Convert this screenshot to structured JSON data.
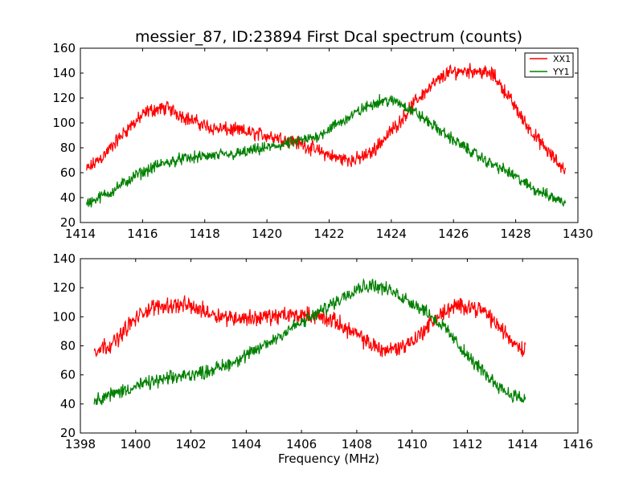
{
  "figure": {
    "title": "messier_87, ID:23894 First Dcal spectrum (counts)"
  },
  "chart_data": [
    {
      "type": "line",
      "xlim": [
        1414,
        1430
      ],
      "ylim": [
        20,
        160
      ],
      "x_ticks": [
        "1414",
        "1416",
        "1418",
        "1420",
        "1422",
        "1424",
        "1426",
        "1428",
        "1430"
      ],
      "y_ticks": [
        "20",
        "40",
        "60",
        "80",
        "100",
        "120",
        "140",
        "160"
      ],
      "legend": {
        "location": "top-right",
        "entries": [
          "XX1",
          "YY1"
        ]
      },
      "grid": false,
      "series": [
        {
          "name": "XX1",
          "color": "#ff0000",
          "noise": 6,
          "x": [
            1414.2,
            1414.8,
            1415.5,
            1416.2,
            1416.8,
            1417.5,
            1418.2,
            1419.0,
            1420.0,
            1420.8,
            1421.5,
            1422.2,
            1422.8,
            1423.3,
            1423.8,
            1424.3,
            1424.8,
            1425.3,
            1425.8,
            1426.3,
            1426.8,
            1427.3,
            1427.8,
            1428.3,
            1428.8,
            1429.2,
            1429.6
          ],
          "y": [
            62,
            75,
            95,
            110,
            112,
            103,
            96,
            94,
            90,
            86,
            79,
            72,
            70,
            75,
            88,
            102,
            118,
            130,
            140,
            142,
            142,
            138,
            120,
            100,
            84,
            72,
            62
          ]
        },
        {
          "name": "YY1",
          "color": "#008000",
          "noise": 5,
          "x": [
            1414.2,
            1415.0,
            1415.8,
            1416.5,
            1417.2,
            1418.0,
            1419.0,
            1420.0,
            1420.8,
            1421.5,
            1422.2,
            1423.0,
            1423.6,
            1424.2,
            1424.8,
            1425.5,
            1426.2,
            1427.0,
            1427.8,
            1428.5,
            1429.2,
            1429.6
          ],
          "y": [
            35,
            45,
            58,
            66,
            71,
            73,
            75,
            80,
            84,
            88,
            98,
            110,
            118,
            117,
            108,
            95,
            83,
            70,
            60,
            48,
            40,
            36
          ]
        }
      ]
    },
    {
      "type": "line",
      "xlim": [
        1398,
        1416
      ],
      "ylim": [
        20,
        140
      ],
      "xlabel": "Frequency (MHz)",
      "x_ticks": [
        "1398",
        "1400",
        "1402",
        "1404",
        "1406",
        "1408",
        "1410",
        "1412",
        "1414",
        "1416"
      ],
      "y_ticks": [
        "20",
        "40",
        "60",
        "80",
        "100",
        "120",
        "140"
      ],
      "grid": false,
      "series": [
        {
          "name": "XX1",
          "color": "#ff0000",
          "noise": 6,
          "x": [
            1398.5,
            1399.2,
            1399.8,
            1400.4,
            1401.0,
            1401.8,
            1402.5,
            1403.2,
            1404.0,
            1404.8,
            1405.6,
            1406.4,
            1407.2,
            1407.8,
            1408.4,
            1409.0,
            1409.6,
            1410.2,
            1410.8,
            1411.4,
            1412.0,
            1412.6,
            1413.2,
            1413.7,
            1414.1
          ],
          "y": [
            77,
            82,
            95,
            105,
            108,
            108,
            104,
            100,
            99,
            100,
            101,
            101,
            97,
            90,
            82,
            77,
            79,
            86,
            98,
            106,
            108,
            104,
            92,
            82,
            77
          ]
        },
        {
          "name": "YY1",
          "color": "#008000",
          "noise": 5,
          "x": [
            1398.5,
            1399.2,
            1400.0,
            1400.8,
            1401.6,
            1402.5,
            1403.3,
            1404.0,
            1404.8,
            1405.6,
            1406.4,
            1407.2,
            1408.0,
            1408.6,
            1409.2,
            1409.8,
            1410.5,
            1411.2,
            1412.0,
            1412.8,
            1413.5,
            1414.1
          ],
          "y": [
            43,
            47,
            52,
            56,
            59,
            62,
            67,
            73,
            82,
            92,
            100,
            110,
            120,
            122,
            118,
            112,
            104,
            92,
            73,
            58,
            47,
            43
          ]
        }
      ]
    }
  ]
}
